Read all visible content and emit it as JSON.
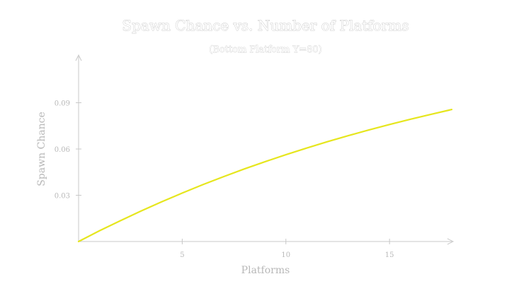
{
  "chart_data": {
    "type": "line",
    "title": "Spawn Chance vs. Number of Platforms",
    "subtitle": "(Bottom Platform Y=80)",
    "xlabel": "Platforms",
    "ylabel": "Spawn Chance",
    "xlim": [
      0,
      18
    ],
    "ylim": [
      0,
      0.12
    ],
    "x_ticks": [
      5,
      10,
      15
    ],
    "x_tick_labels": [
      "5",
      "10",
      "15"
    ],
    "y_ticks": [
      0.03,
      0.06,
      0.09
    ],
    "y_tick_labels": [
      "0.03",
      "0.06",
      "0.09"
    ],
    "grid": false,
    "series": [
      {
        "color": "#e6e61e",
        "x": [
          0,
          1,
          2,
          3,
          4,
          5,
          6,
          7,
          8,
          9,
          10,
          11,
          12,
          13,
          14,
          15,
          16,
          17,
          18
        ],
        "values": [
          0.0,
          0.0069,
          0.0134,
          0.0197,
          0.0257,
          0.0314,
          0.0369,
          0.0421,
          0.0471,
          0.0518,
          0.0563,
          0.0606,
          0.0647,
          0.0686,
          0.0723,
          0.0759,
          0.0793,
          0.0825,
          0.0856
        ]
      }
    ]
  }
}
